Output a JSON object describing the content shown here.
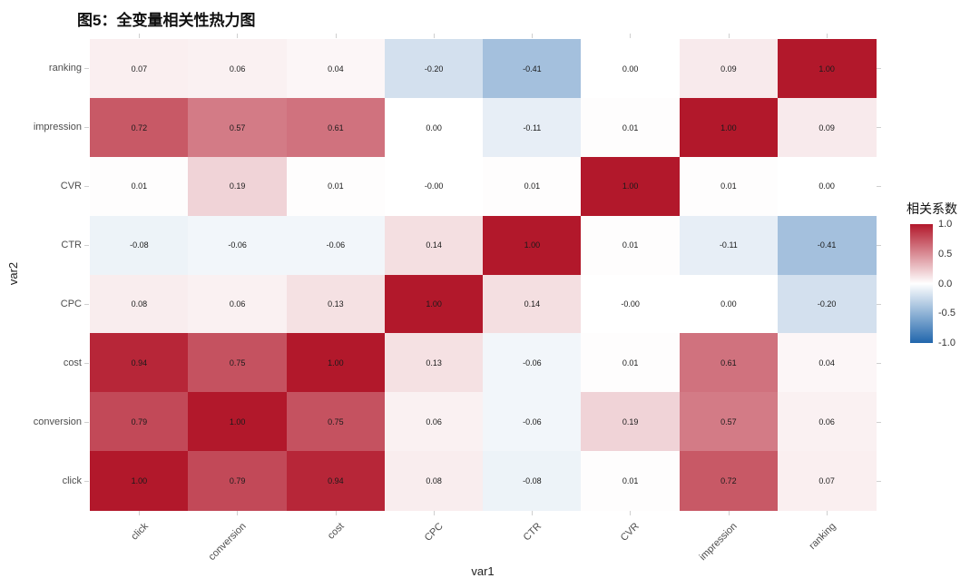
{
  "title": "图5：全变量相关性热力图",
  "chart_data": {
    "type": "heatmap",
    "title": "图5：全变量相关性热力图",
    "xlabel": "var1",
    "ylabel": "var2",
    "x_categories": [
      "click",
      "conversion",
      "cost",
      "CPC",
      "CTR",
      "CVR",
      "impression",
      "ranking"
    ],
    "y_categories_top_to_bottom": [
      "ranking",
      "impression",
      "CVR",
      "CTR",
      "CPC",
      "cost",
      "conversion",
      "click"
    ],
    "rows": [
      {
        "y": "ranking",
        "values": [
          "0.07",
          "0.06",
          "0.04",
          "-0.20",
          "-0.41",
          "0.00",
          "0.09",
          "1.00"
        ]
      },
      {
        "y": "impression",
        "values": [
          "0.72",
          "0.57",
          "0.61",
          "0.00",
          "-0.11",
          "0.01",
          "1.00",
          "0.09"
        ]
      },
      {
        "y": "CVR",
        "values": [
          "0.01",
          "0.19",
          "0.01",
          "-0.00",
          "0.01",
          "1.00",
          "0.01",
          "0.00"
        ]
      },
      {
        "y": "CTR",
        "values": [
          "-0.08",
          "-0.06",
          "-0.06",
          "0.14",
          "1.00",
          "0.01",
          "-0.11",
          "-0.41"
        ]
      },
      {
        "y": "CPC",
        "values": [
          "0.08",
          "0.06",
          "0.13",
          "1.00",
          "0.14",
          "-0.00",
          "0.00",
          "-0.20"
        ]
      },
      {
        "y": "cost",
        "values": [
          "0.94",
          "0.75",
          "1.00",
          "0.13",
          "-0.06",
          "0.01",
          "0.61",
          "0.04"
        ]
      },
      {
        "y": "conversion",
        "values": [
          "0.79",
          "1.00",
          "0.75",
          "0.06",
          "-0.06",
          "0.19",
          "0.57",
          "0.06"
        ]
      },
      {
        "y": "click",
        "values": [
          "1.00",
          "0.79",
          "0.94",
          "0.08",
          "-0.08",
          "0.01",
          "0.72",
          "0.07"
        ]
      }
    ],
    "colorscale": {
      "low": "#2166AC",
      "mid": "#FFFFFF",
      "high": "#B2182B",
      "domain": [
        -1.0,
        0.0,
        1.0
      ]
    },
    "legend": {
      "title": "相关系数",
      "ticks": [
        "1.0",
        "0.5",
        "0.0",
        "-0.5",
        "-1.0"
      ],
      "position": "right"
    },
    "grid": false
  }
}
